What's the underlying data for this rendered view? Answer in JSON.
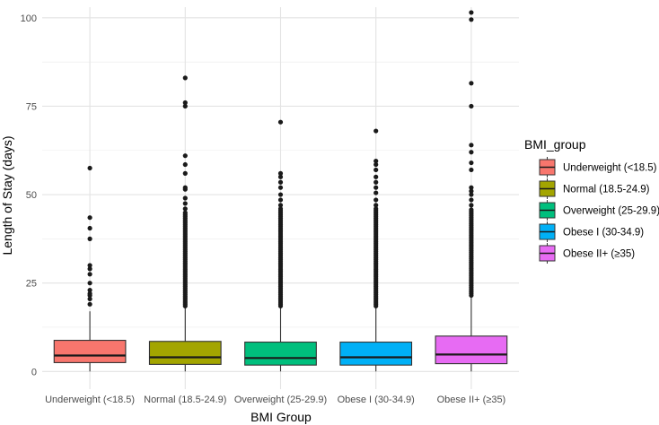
{
  "chart_data": {
    "type": "boxplot",
    "xlabel": "BMI Group",
    "ylabel": "Length of Stay (days)",
    "ylim": [
      -5,
      103
    ],
    "y_ticks": [
      0,
      25,
      50,
      75,
      100
    ],
    "grid": true,
    "legend": {
      "title": "BMI_group",
      "position": "right"
    },
    "categories": [
      "Underweight (<18.5)",
      "Normal (18.5-24.9)",
      "Overweight (25-29.9)",
      "Obese I (30-34.9)",
      "Obese II+ (≥35)"
    ],
    "series": [
      {
        "name": "Underweight (<18.5)",
        "color": "#F8766D",
        "min": 0,
        "q1": 2.5,
        "median": 4.5,
        "q3": 8.8,
        "max": 17,
        "outliers": [
          19,
          20.5,
          21.5,
          22,
          23,
          25,
          27.5,
          29,
          30,
          37.5,
          40.5,
          43.5,
          57.5
        ]
      },
      {
        "name": "Normal (18.5-24.9)",
        "color": "#A3A500",
        "min": 0,
        "q1": 2.0,
        "median": 4.0,
        "q3": 8.5,
        "max": 18,
        "outlier_dense_range": [
          18.5,
          45
        ],
        "outliers": [
          46,
          47.5,
          49,
          51.5,
          52,
          56,
          58.5,
          61,
          75,
          76,
          83
        ]
      },
      {
        "name": "Overweight (25-29.9)",
        "color": "#00BF7D",
        "min": 0,
        "q1": 1.8,
        "median": 3.8,
        "q3": 8.3,
        "max": 18,
        "outlier_dense_range": [
          18.5,
          46
        ],
        "outliers": [
          47,
          48.5,
          50,
          52,
          53.5,
          55,
          56,
          70.5
        ]
      },
      {
        "name": "Obese I (30-34.9)",
        "color": "#00B0F6",
        "min": 0,
        "q1": 1.8,
        "median": 4.0,
        "q3": 8.3,
        "max": 18,
        "outlier_dense_range": [
          18.5,
          46
        ],
        "outliers": [
          47,
          48.5,
          50.5,
          52,
          53.5,
          55,
          57,
          58.5,
          59.5,
          68
        ]
      },
      {
        "name": "Obese II+ (≥35)",
        "color": "#E76BF3",
        "min": 0,
        "q1": 2.2,
        "median": 4.8,
        "q3": 10.0,
        "max": 21,
        "outlier_dense_range": [
          21.5,
          46
        ],
        "outliers": [
          47,
          48.5,
          50,
          51,
          52,
          57,
          59,
          62,
          64,
          75,
          81.5,
          99.5,
          101.5
        ]
      }
    ]
  }
}
